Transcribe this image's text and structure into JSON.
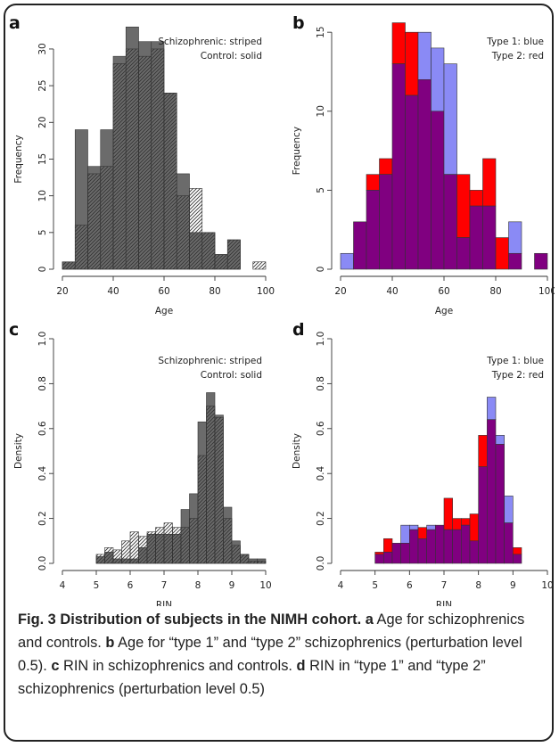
{
  "caption": {
    "title": "Fig. 3 Distribution of subjects in the NIMH cohort.",
    "parts": [
      {
        "letter": "a",
        "text": " Age for schizophrenics and controls. "
      },
      {
        "letter": "b",
        "text": " Age for “type 1” and “type 2” schizophrenics (perturbation level 0.5). "
      },
      {
        "letter": "c",
        "text": " RIN in schizophrenics and controls. "
      },
      {
        "letter": "d",
        "text": " RIN in “type 1” and “type 2” schizophrenics (perturbation level 0.5)"
      }
    ]
  },
  "colors": {
    "solid": "#6b6b6b",
    "hatch": "#333333",
    "blue": "#8a8af5",
    "red": "#ff0000",
    "overlap": "#800080"
  },
  "chart_data": [
    {
      "panel": "a",
      "type": "bar",
      "xlabel": "Age",
      "ylabel": "Frequency",
      "legend": [
        "Schizophrenic: striped",
        "Control: solid"
      ],
      "legend_position": "top-right",
      "xlim": [
        20,
        100
      ],
      "ylim": [
        0,
        34
      ],
      "xticks": [
        20,
        40,
        60,
        80,
        100
      ],
      "yticks": [
        0,
        5,
        10,
        15,
        20,
        25,
        30
      ],
      "bin_edges": [
        20,
        25,
        30,
        35,
        40,
        45,
        50,
        55,
        60,
        65,
        70,
        75,
        80,
        85,
        90,
        95,
        100
      ],
      "series": [
        {
          "name": "Schizophrenic: striped",
          "style": "striped",
          "values": [
            1,
            6,
            13,
            14,
            28,
            30,
            29,
            30,
            24,
            10,
            11,
            5,
            2,
            4,
            0,
            1
          ]
        },
        {
          "name": "Control: solid",
          "style": "solid",
          "values": [
            1,
            19,
            14,
            19,
            29,
            33,
            31,
            31,
            24,
            13,
            5,
            5,
            2,
            4,
            0,
            0
          ]
        }
      ]
    },
    {
      "panel": "b",
      "type": "bar",
      "xlabel": "Age",
      "ylabel": "Frequency",
      "legend": [
        "Type 1: blue",
        "Type 2: red"
      ],
      "legend_position": "top-right",
      "xlim": [
        20,
        100
      ],
      "ylim": [
        0,
        15.8
      ],
      "xticks": [
        20,
        40,
        60,
        80,
        100
      ],
      "yticks": [
        0,
        5,
        10,
        15
      ],
      "bin_edges": [
        20,
        25,
        30,
        35,
        40,
        45,
        50,
        55,
        60,
        65,
        70,
        75,
        80,
        85,
        90,
        95,
        100
      ],
      "series": [
        {
          "name": "Type 1: blue",
          "values": [
            1,
            3,
            5,
            6,
            13,
            11,
            15,
            14,
            13,
            2,
            4,
            4,
            0,
            3,
            0,
            1
          ]
        },
        {
          "name": "Type 2: red",
          "values": [
            0,
            3,
            6,
            7,
            15.6,
            15,
            12,
            10,
            6,
            6,
            5,
            7,
            2,
            1,
            0,
            1
          ]
        }
      ]
    },
    {
      "panel": "c",
      "type": "bar",
      "xlabel": "RIN",
      "ylabel": "Density",
      "legend": [
        "Schizophrenic: striped",
        "Control: solid"
      ],
      "legend_position": "top-right",
      "xlim": [
        4,
        10
      ],
      "ylim": [
        0,
        1.0
      ],
      "xticks": [
        4,
        5,
        6,
        7,
        8,
        9,
        10
      ],
      "yticks": [
        0.0,
        0.2,
        0.4,
        0.6,
        0.8,
        1.0
      ],
      "bin_edges": [
        4,
        4.25,
        4.5,
        4.75,
        5,
        5.25,
        5.5,
        5.75,
        6,
        6.25,
        6.5,
        6.75,
        7,
        7.25,
        7.5,
        7.75,
        8,
        8.25,
        8.5,
        8.75,
        9,
        9.25,
        9.5,
        9.75,
        10
      ],
      "series": [
        {
          "name": "Schizophrenic: striped",
          "style": "striped",
          "values": [
            0,
            0,
            0,
            0,
            0.04,
            0.07,
            0.06,
            0.1,
            0.14,
            0.12,
            0.14,
            0.16,
            0.18,
            0.16,
            0.16,
            0.2,
            0.48,
            0.7,
            0.65,
            0.2,
            0.08,
            0.04,
            0.01,
            0.01
          ]
        },
        {
          "name": "Control: solid",
          "style": "solid",
          "values": [
            0,
            0,
            0,
            0,
            0.03,
            0.05,
            0.02,
            0.02,
            0.02,
            0.07,
            0.13,
            0.13,
            0.13,
            0.13,
            0.24,
            0.31,
            0.63,
            0.76,
            0.66,
            0.25,
            0.1,
            0.04,
            0.02,
            0.02
          ]
        }
      ]
    },
    {
      "panel": "d",
      "type": "bar",
      "xlabel": "RIN",
      "ylabel": "Density",
      "legend": [
        "Type 1: blue",
        "Type 2: red"
      ],
      "legend_position": "top-right",
      "xlim": [
        4,
        10
      ],
      "ylim": [
        0,
        1.0
      ],
      "xticks": [
        4,
        5,
        6,
        7,
        8,
        9,
        10
      ],
      "yticks": [
        0.0,
        0.2,
        0.4,
        0.6,
        0.8,
        1.0
      ],
      "bin_edges": [
        4,
        4.25,
        4.5,
        4.75,
        5,
        5.25,
        5.5,
        5.75,
        6,
        6.25,
        6.5,
        6.75,
        7,
        7.25,
        7.5,
        7.75,
        8,
        8.25,
        8.5,
        8.75,
        9,
        9.25
      ],
      "series": [
        {
          "name": "Type 1: blue",
          "values": [
            0,
            0,
            0,
            0,
            0.04,
            0.05,
            0.09,
            0.17,
            0.17,
            0.11,
            0.17,
            0.17,
            0.15,
            0.15,
            0.17,
            0.1,
            0.43,
            0.74,
            0.57,
            0.3,
            0.04
          ]
        },
        {
          "name": "Type 2: red",
          "values": [
            0,
            0,
            0,
            0,
            0.05,
            0.11,
            0.09,
            0.09,
            0.15,
            0.16,
            0.15,
            0.17,
            0.29,
            0.2,
            0.2,
            0.22,
            0.57,
            0.64,
            0.53,
            0.18,
            0.07
          ]
        }
      ]
    }
  ]
}
